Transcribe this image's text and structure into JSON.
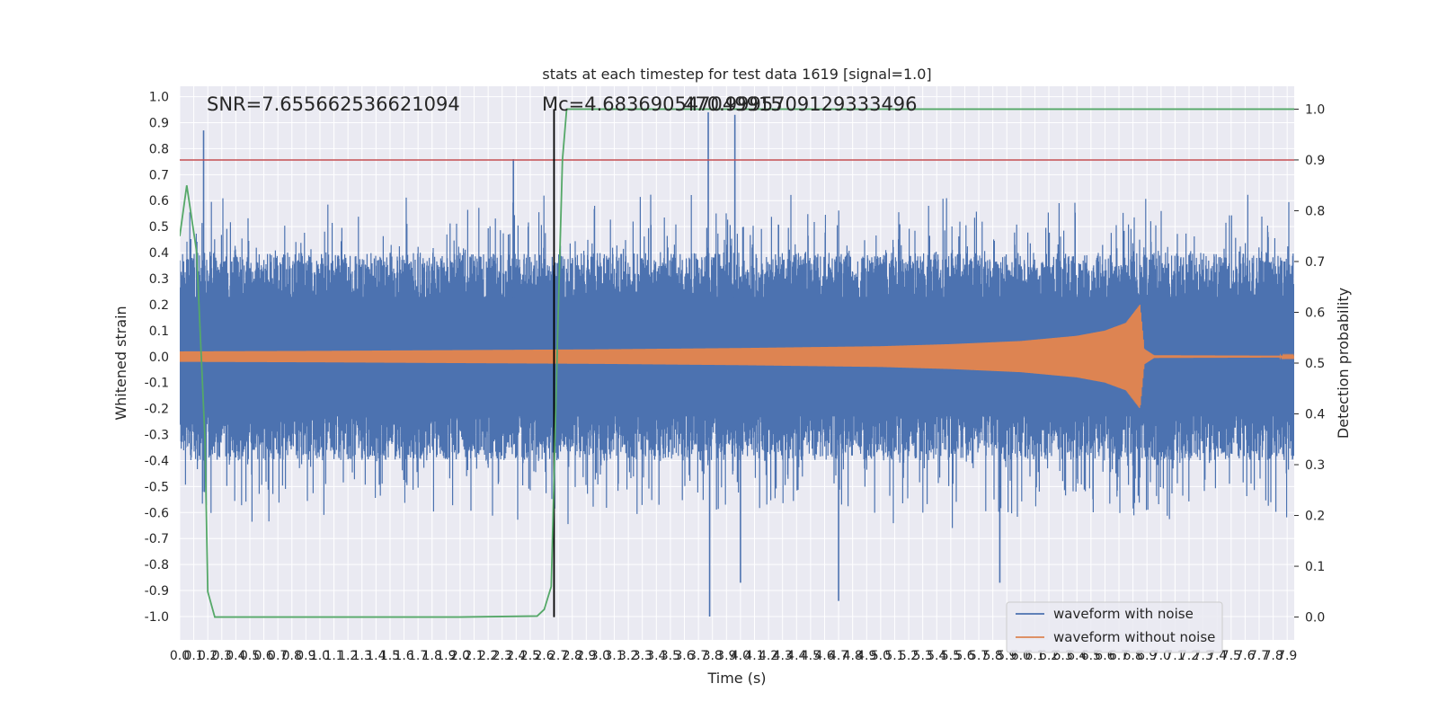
{
  "chart_data": {
    "type": "line",
    "title": "stats at each timestep for test data 1619 [signal=1.0]",
    "xlabel": "Time (s)",
    "ylabel": "Whitened strain",
    "y2label": "Detection probability",
    "xlim": [
      0.0,
      7.95
    ],
    "ylim": [
      -1.09,
      1.04
    ],
    "y2lim": [
      -0.045,
      1.045
    ],
    "x_ticks": [
      "0.0",
      "0.1",
      "0.2",
      "0.3",
      "0.4",
      "0.5",
      "0.6",
      "0.7",
      "0.8",
      "0.9",
      "1.0",
      "1.1",
      "1.2",
      "1.3",
      "1.4",
      "1.5",
      "1.6",
      "1.7",
      "1.8",
      "1.9",
      "2.0",
      "2.1",
      "2.2",
      "2.3",
      "2.4",
      "2.5",
      "2.6",
      "2.7",
      "2.8",
      "2.9",
      "3.0",
      "3.1",
      "3.2",
      "3.3",
      "3.4",
      "3.5",
      "3.6",
      "3.7",
      "3.8",
      "3.9",
      "4.0",
      "4.1",
      "4.2",
      "4.3",
      "4.4",
      "4.5",
      "4.6",
      "4.7",
      "4.8",
      "4.9",
      "5.0",
      "5.1",
      "5.2",
      "5.3",
      "5.4",
      "5.5",
      "5.6",
      "5.7",
      "5.8",
      "5.9",
      "6.0",
      "6.1",
      "6.2",
      "6.3",
      "6.4",
      "6.5",
      "6.6",
      "6.7",
      "6.8",
      "6.9",
      "7.0",
      "7.1",
      "7.2",
      "7.3",
      "7.4",
      "7.5",
      "7.6",
      "7.7",
      "7.8",
      "7.9"
    ],
    "y_ticks": [
      "1.0",
      "0.9",
      "0.8",
      "0.7",
      "0.6",
      "0.5",
      "0.4",
      "0.3",
      "0.2",
      "0.1",
      "0.0",
      "-0.1",
      "-0.2",
      "-0.3",
      "-0.4",
      "-0.5",
      "-0.6",
      "-0.7",
      "-0.8",
      "-0.9",
      "-1.0"
    ],
    "y2_ticks": [
      "1.0",
      "0.9",
      "0.8",
      "0.7",
      "0.6",
      "0.5",
      "0.4",
      "0.3",
      "0.2",
      "0.1",
      "0.0"
    ],
    "grid": true,
    "legend_position": "bottom-right",
    "series": [
      {
        "name": "waveform with noise",
        "axis": "left",
        "color": "#4c72b0",
        "description": "dense noisy strain between approx -0.55 and 0.55 with spikes reaching about -1.0 and 0.95",
        "peaks": [
          [
            0.17,
            0.87
          ],
          [
            0.18,
            -0.38
          ],
          [
            2.38,
            0.76
          ],
          [
            3.77,
            0.94
          ],
          [
            3.78,
            -1.0
          ],
          [
            3.96,
            0.93
          ],
          [
            4.0,
            -0.87
          ],
          [
            4.7,
            -0.94
          ],
          [
            5.85,
            -0.87
          ]
        ]
      },
      {
        "name": "waveform without noise",
        "axis": "left",
        "color": "#dd8452",
        "description": "chirp signal, amplitude growing from 0.02 to about 0.2 at merger near 6.86 s, then ringdown",
        "envelope": [
          [
            0.0,
            0.02
          ],
          [
            1.0,
            0.022
          ],
          [
            2.0,
            0.025
          ],
          [
            3.0,
            0.028
          ],
          [
            4.0,
            0.033
          ],
          [
            5.0,
            0.04
          ],
          [
            5.5,
            0.048
          ],
          [
            6.0,
            0.06
          ],
          [
            6.4,
            0.08
          ],
          [
            6.6,
            0.1
          ],
          [
            6.75,
            0.13
          ],
          [
            6.85,
            0.2
          ],
          [
            6.88,
            0.03
          ],
          [
            6.95,
            0.005
          ],
          [
            7.95,
            0.003
          ]
        ]
      },
      {
        "name": "detection probability",
        "axis": "right",
        "color": "#55a868",
        "points": [
          [
            0.0,
            0.75
          ],
          [
            0.05,
            0.85
          ],
          [
            0.12,
            0.72
          ],
          [
            0.18,
            0.35
          ],
          [
            0.2,
            0.05
          ],
          [
            0.25,
            0.0
          ],
          [
            1.0,
            0.0
          ],
          [
            2.0,
            0.0
          ],
          [
            2.55,
            0.002
          ],
          [
            2.6,
            0.015
          ],
          [
            2.65,
            0.06
          ],
          [
            2.7,
            0.6
          ],
          [
            2.73,
            0.9
          ],
          [
            2.76,
            1.0
          ],
          [
            3.5,
            1.0
          ],
          [
            5.0,
            1.0
          ],
          [
            6.5,
            1.0
          ],
          [
            7.95,
            1.0
          ]
        ]
      }
    ],
    "threshold": {
      "axis": "right",
      "value": 0.9,
      "color": "#c44e52"
    },
    "marker_line": {
      "x": 2.67,
      "color": "#000000"
    },
    "annotations": [
      {
        "text": "SNR=7.655662536621094",
        "x": 0.18,
        "y": 0.95
      },
      {
        "text": "Mc=4.683690547049915",
        "x": 2.58,
        "y": 0.95
      },
      {
        "text": "470.9995709129333496",
        "x": 3.58,
        "y": 0.95
      }
    ]
  }
}
